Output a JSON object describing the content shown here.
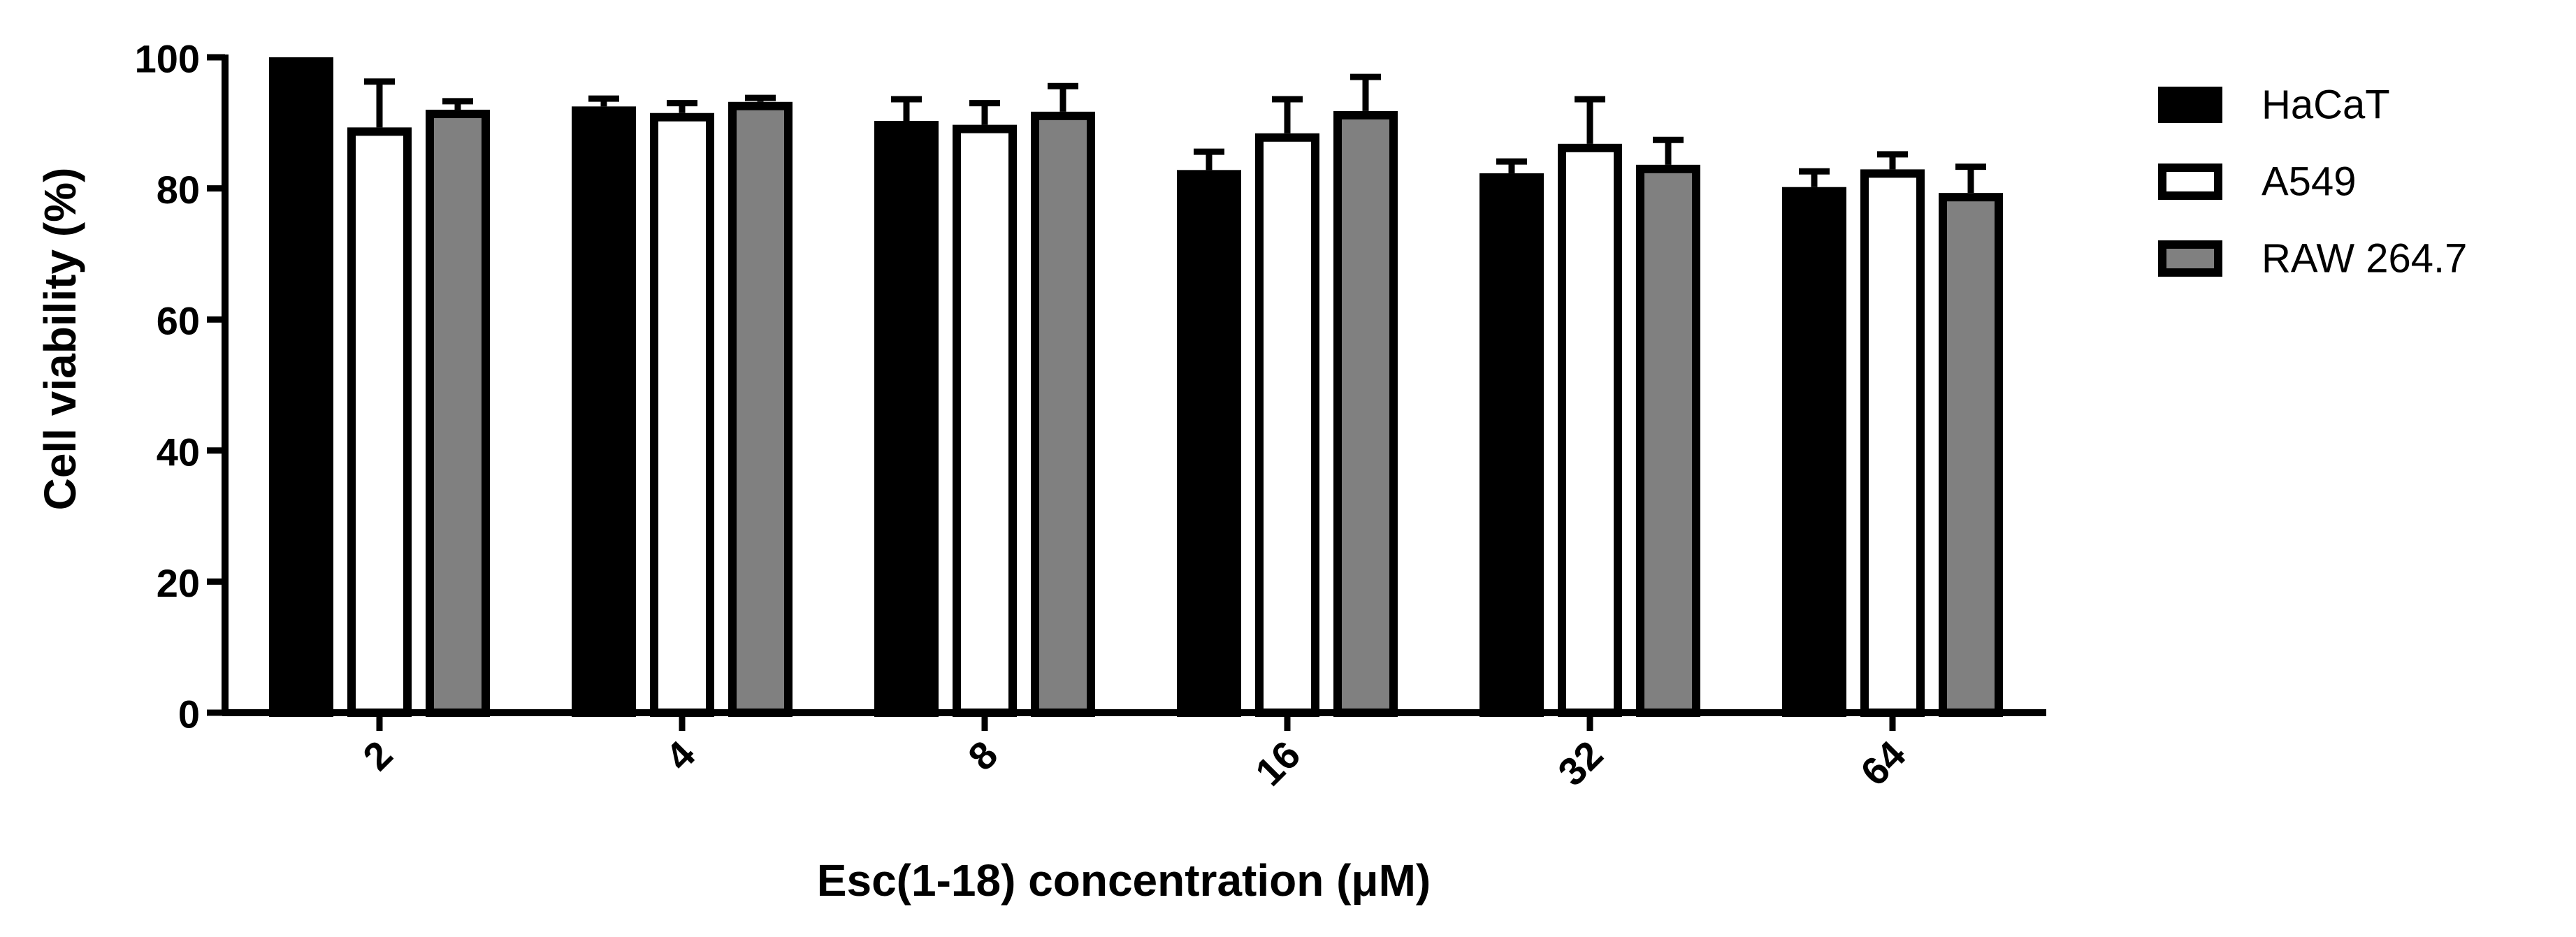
{
  "chart_data": {
    "type": "bar",
    "xlabel": "Esc(1-18) concentration (μM)",
    "ylabel": "Cell viability (%)",
    "ylim": [
      0,
      100
    ],
    "yticks": [
      0,
      20,
      40,
      60,
      80,
      100
    ],
    "categories": [
      "2",
      "4",
      "8",
      "16",
      "32",
      "64"
    ],
    "legend_position": "right",
    "grid": false,
    "series": [
      {
        "name": "HaCaT",
        "color": "#000000",
        "values": [
          100,
          92.5,
          90.3,
          82.8,
          82.3,
          80.2
        ],
        "errors": [
          0,
          1.2,
          3.3,
          2.8,
          1.8,
          2.4
        ]
      },
      {
        "name": "A549",
        "color": "#ffffff",
        "values": [
          89.3,
          91.5,
          89.7,
          88.4,
          86.8,
          82.9
        ],
        "errors": [
          7.0,
          1.5,
          3.3,
          5.2,
          6.8,
          2.3
        ]
      },
      {
        "name": "RAW 264.7",
        "color": "#808080",
        "values": [
          92.0,
          93.2,
          91.7,
          91.8,
          83.6,
          79.3
        ],
        "errors": [
          1.3,
          0.6,
          3.9,
          5.2,
          3.8,
          4.0
        ]
      }
    ]
  }
}
